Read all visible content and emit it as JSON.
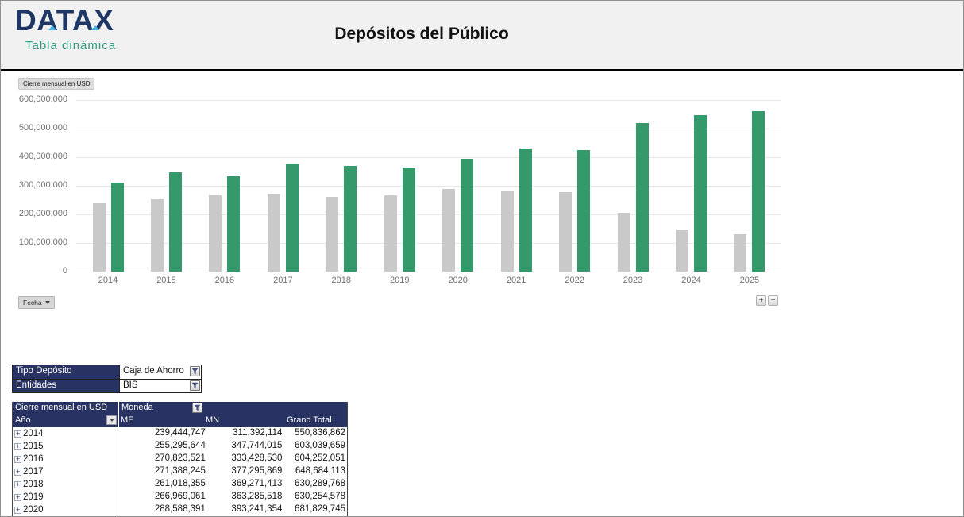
{
  "colors": {
    "navy_header": "#293363",
    "bar_green": "#34996B",
    "bar_gray": "#C9C9C9",
    "logo_navy": "#1F3765",
    "logo_teal": "#2E9E82",
    "logo_cyan": "#3FB3E3"
  },
  "header": {
    "logo_title": "DATAX",
    "logo_subtitle": "Tabla dinámica",
    "page_title": "Depósitos del Público"
  },
  "chart": {
    "field_button_label": "Cierre mensual en USD",
    "axis_field_button_label": "Fecha",
    "expand_button_label": "+",
    "collapse_button_label": "−"
  },
  "chart_data": {
    "type": "bar",
    "title": "Cierre mensual en USD",
    "categories": [
      "2014",
      "2015",
      "2016",
      "2017",
      "2018",
      "2019",
      "2020",
      "2021",
      "2022",
      "2023",
      "2024",
      "2025"
    ],
    "series": [
      {
        "name": "ME",
        "color": "#C9C9C9",
        "values": [
          239444747,
          255295644,
          270823521,
          271388245,
          261018355,
          266969061,
          288588391,
          282000000,
          279000000,
          205000000,
          146000000,
          131000000
        ]
      },
      {
        "name": "MN",
        "color": "#34996B",
        "values": [
          311392114,
          347744015,
          333428530,
          377295869,
          369271413,
          363285518,
          393241354,
          431000000,
          424000000,
          519000000,
          547000000,
          561000000
        ]
      }
    ],
    "xlabel": "",
    "ylabel": "",
    "ylim": [
      0,
      600000000
    ],
    "ytick_interval": 100000000,
    "ytick_labels": [
      "0",
      "100,000,000",
      "200,000,000",
      "300,000,000",
      "400,000,000",
      "500,000,000",
      "600,000,000"
    ],
    "grid": true,
    "legend": "none"
  },
  "filters": {
    "rows": [
      {
        "label": "Tipo Depósito",
        "value": "Caja de Ahorro"
      },
      {
        "label": "Entidades",
        "value": "BIS"
      }
    ]
  },
  "pivot": {
    "title": "Cierre mensual en USD",
    "column_field": "Moneda",
    "row_field": "Año",
    "columns": [
      "ME",
      "MN",
      "Grand Total"
    ],
    "rows": [
      {
        "year": "2014",
        "me": "239,444,747",
        "mn": "311,392,114",
        "total": "550,836,862"
      },
      {
        "year": "2015",
        "me": "255,295,644",
        "mn": "347,744,015",
        "total": "603,039,659"
      },
      {
        "year": "2016",
        "me": "270,823,521",
        "mn": "333,428,530",
        "total": "604,252,051"
      },
      {
        "year": "2017",
        "me": "271,388,245",
        "mn": "377,295,869",
        "total": "648,684,113"
      },
      {
        "year": "2018",
        "me": "261,018,355",
        "mn": "369,271,413",
        "total": "630,289,768"
      },
      {
        "year": "2019",
        "me": "266,969,061",
        "mn": "363,285,518",
        "total": "630,254,578"
      },
      {
        "year": "2020",
        "me": "288,588,391",
        "mn": "393,241,354",
        "total": "681,829,745"
      }
    ]
  }
}
